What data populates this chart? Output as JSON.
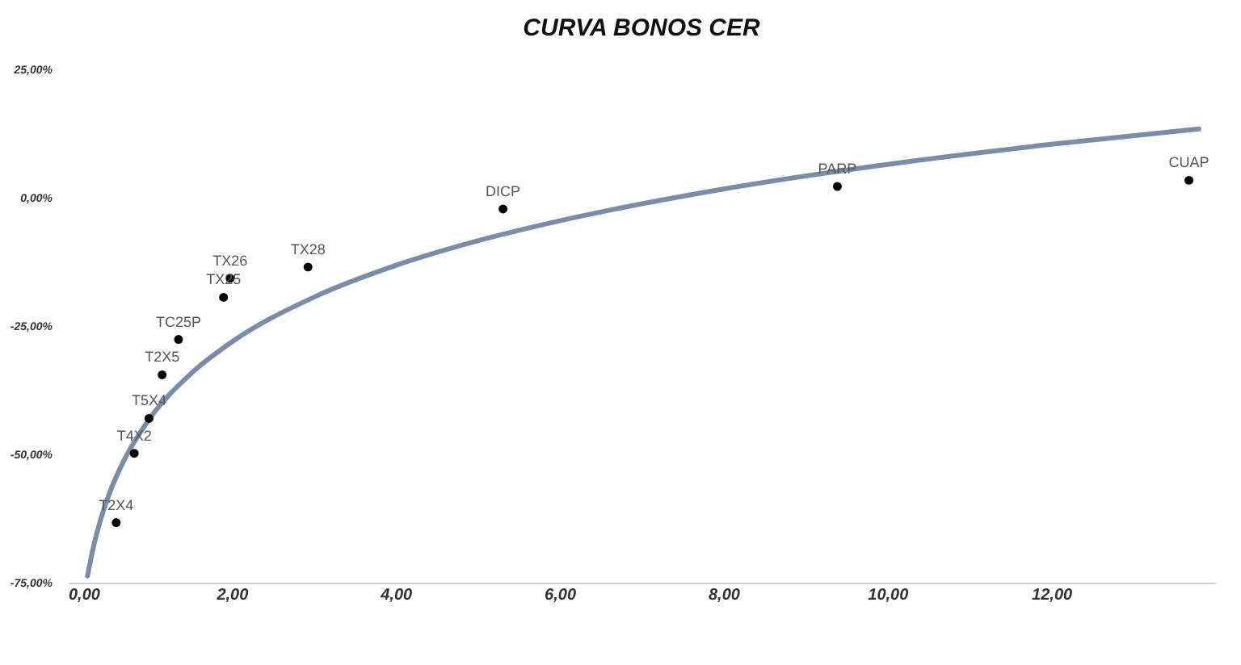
{
  "chart_data": {
    "type": "scatter",
    "title": "CURVA BONOS CER",
    "xlim": [
      0,
      14
    ],
    "ylim": [
      -75,
      25
    ],
    "xticks": [
      {
        "value": 0,
        "label": "0,00"
      },
      {
        "value": 2,
        "label": "2,00"
      },
      {
        "value": 4,
        "label": "4,00"
      },
      {
        "value": 6,
        "label": "6,00"
      },
      {
        "value": 8,
        "label": "8,00"
      },
      {
        "value": 10,
        "label": "10,00"
      },
      {
        "value": 12,
        "label": "12,00"
      }
    ],
    "yticks": [
      {
        "value": -75,
        "label": "-75,00%"
      },
      {
        "value": -50,
        "label": "-50,00%"
      },
      {
        "value": -25,
        "label": "-25,00%"
      },
      {
        "value": 0,
        "label": "0,00%"
      },
      {
        "value": 25,
        "label": "25,00%"
      }
    ],
    "grid": false,
    "series": [
      {
        "type": "line",
        "color": "#7a8ca8",
        "x": [
          0.24,
          0.3,
          0.4,
          0.5,
          0.7,
          1,
          1.5,
          2,
          3,
          4,
          5,
          6,
          8,
          10,
          12,
          13.8
        ],
        "values": [
          -73.7,
          -68.9,
          -62.7,
          -57.9,
          -50.7,
          -43,
          -34.3,
          -28.1,
          -19.4,
          -13.2,
          -8.4,
          -4.5,
          1.7,
          6.5,
          10.4,
          13.4
        ]
      },
      {
        "color": "#000000",
        "marker": "circle",
        "x": [
          0.59,
          0.81,
          0.99,
          1.15,
          1.35,
          1.9,
          1.98,
          2.93,
          5.31,
          9.39,
          13.68
        ],
        "values": [
          -63.3,
          -49.8,
          -43,
          -34.5,
          -27.6,
          -19.4,
          -15.7,
          -13.5,
          -2.2,
          2.2,
          3.4
        ]
      }
    ],
    "annotations": [
      {
        "text": "T2X4",
        "x": 0.59,
        "y": -63.3
      },
      {
        "text": "T4X2",
        "x": 0.81,
        "y": -49.8
      },
      {
        "text": "T5X4",
        "x": 0.99,
        "y": -43
      },
      {
        "text": "T2X5",
        "x": 1.15,
        "y": -34.5
      },
      {
        "text": "TC25P",
        "x": 1.35,
        "y": -27.6
      },
      {
        "text": "TX25",
        "x": 1.9,
        "y": -19.4
      },
      {
        "text": "TX26",
        "x": 1.98,
        "y": -15.7
      },
      {
        "text": "TX28",
        "x": 2.93,
        "y": -13.5
      },
      {
        "text": "DICP",
        "x": 5.31,
        "y": -2.2
      },
      {
        "text": "PARP",
        "x": 9.39,
        "y": 2.2
      },
      {
        "text": "CUAP",
        "x": 13.68,
        "y": 3.4
      }
    ]
  }
}
